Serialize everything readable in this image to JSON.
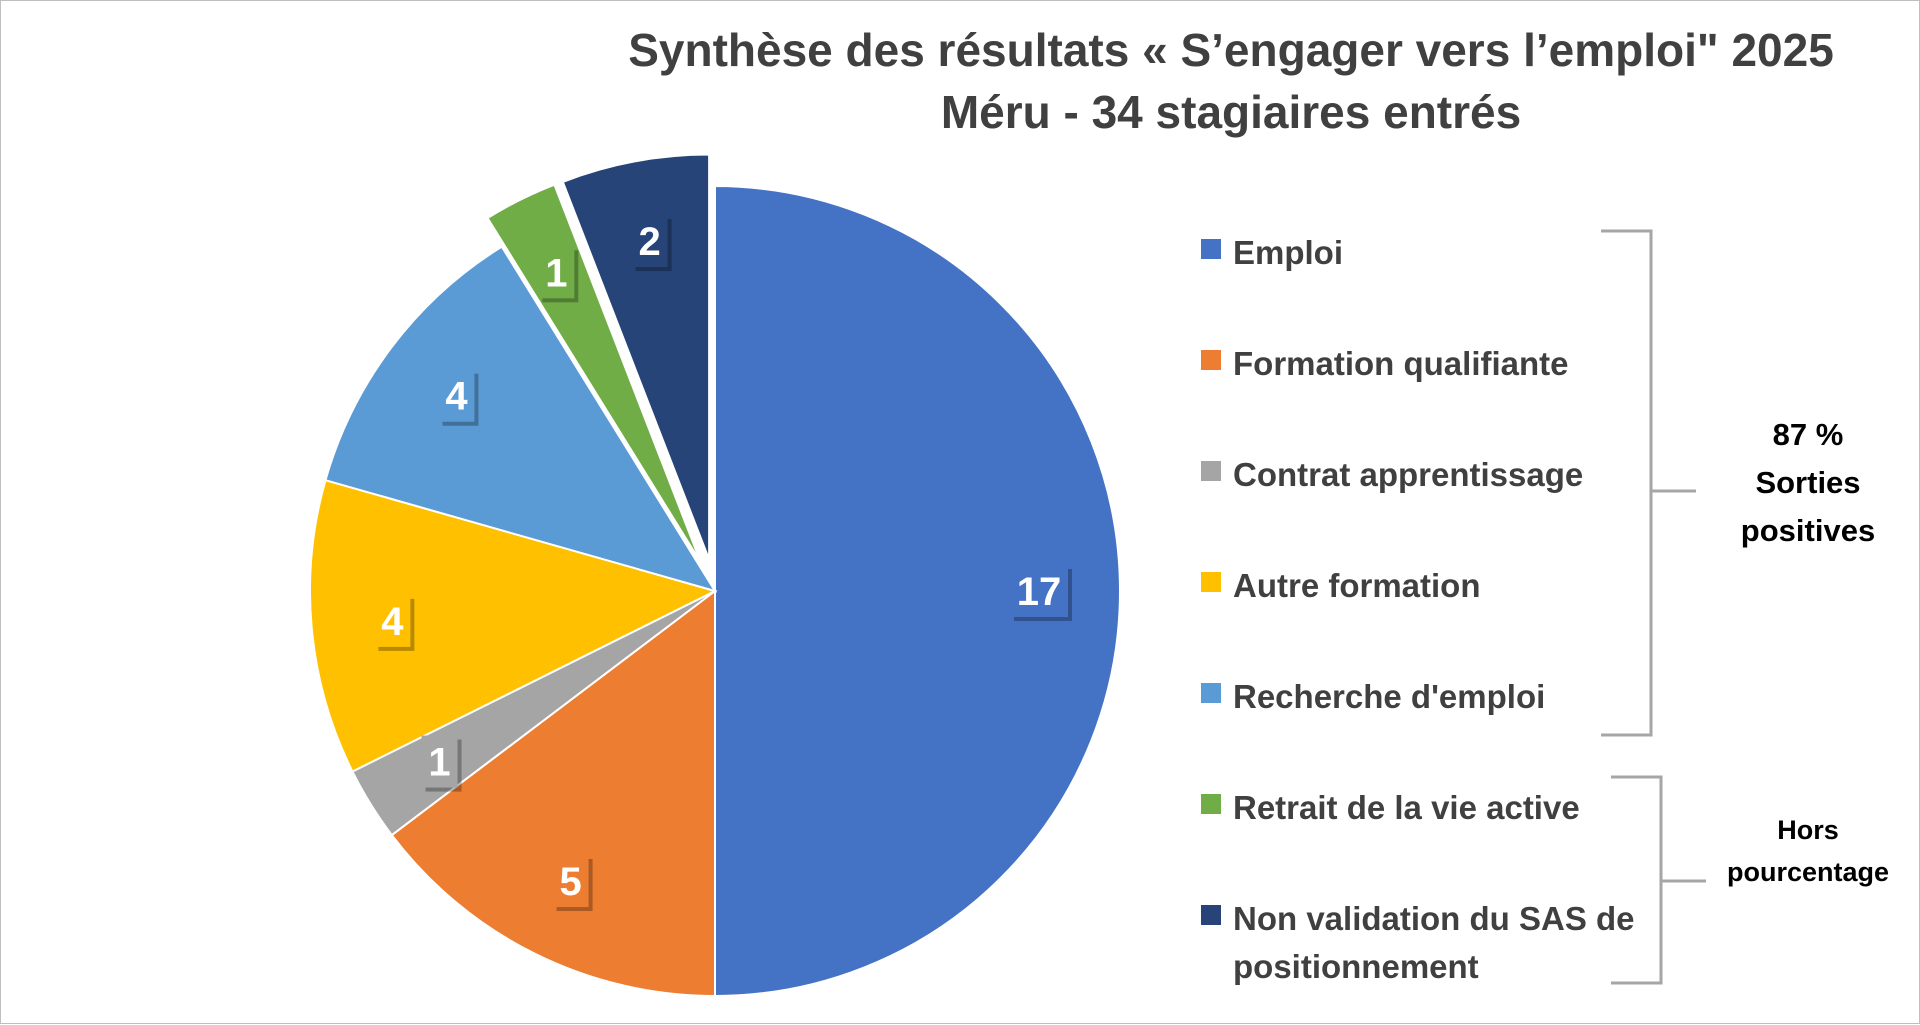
{
  "chart_data": {
    "type": "pie",
    "title": "Synthèse des résultats « S’engager vers l’emploi\" 2025",
    "subtitle": "Méru - 34 stagiaires entrés",
    "categories": [
      "Emploi",
      "Formation qualifiante",
      "Contrat apprentissage",
      "Autre formation",
      "Recherche d'emploi",
      "Retrait de la vie active",
      "Non validation du SAS de positionnement"
    ],
    "values": [
      17,
      5,
      1,
      4,
      4,
      1,
      2
    ],
    "data_labels": [
      "17",
      "5",
      "1",
      "4",
      "4",
      "1",
      "2"
    ],
    "colors": [
      "#4472c4",
      "#ed7d31",
      "#a5a5a5",
      "#ffc000",
      "#5b9bd5",
      "#70ad47",
      "#264478"
    ],
    "exploded": [
      false,
      false,
      false,
      false,
      false,
      true,
      true
    ],
    "legend_position": "right",
    "start_angle": "12 o'clock",
    "direction": "clockwise",
    "annotations": [
      {
        "text": "87 % Sorties positives",
        "lines": [
          "87 %",
          "Sorties",
          "positives"
        ],
        "groups": [
          "Emploi",
          "Formation qualifiante",
          "Contrat apprentissage",
          "Autre formation",
          "Recherche d'emploi"
        ]
      },
      {
        "text": "Hors pourcentage",
        "lines": [
          "Hors",
          "pourcentage"
        ],
        "groups": [
          "Retrait de la vie active",
          "Non validation du SAS de positionnement"
        ]
      }
    ],
    "legend": [
      {
        "label": "Emploi",
        "color": "#4472c4"
      },
      {
        "label": "Formation qualifiante",
        "color": "#ed7d31"
      },
      {
        "label": "Contrat apprentissage",
        "color": "#a5a5a5"
      },
      {
        "label": "Autre formation",
        "color": "#ffc000"
      },
      {
        "label": "Recherche d'emploi",
        "color": "#5b9bd5"
      },
      {
        "label": "Retrait de la vie active",
        "color": "#70ad47"
      },
      {
        "label": "Non validation du SAS de",
        "label_line2": "positionnement",
        "color": "#264478"
      }
    ],
    "bracket_color": "#a6a6a6"
  }
}
